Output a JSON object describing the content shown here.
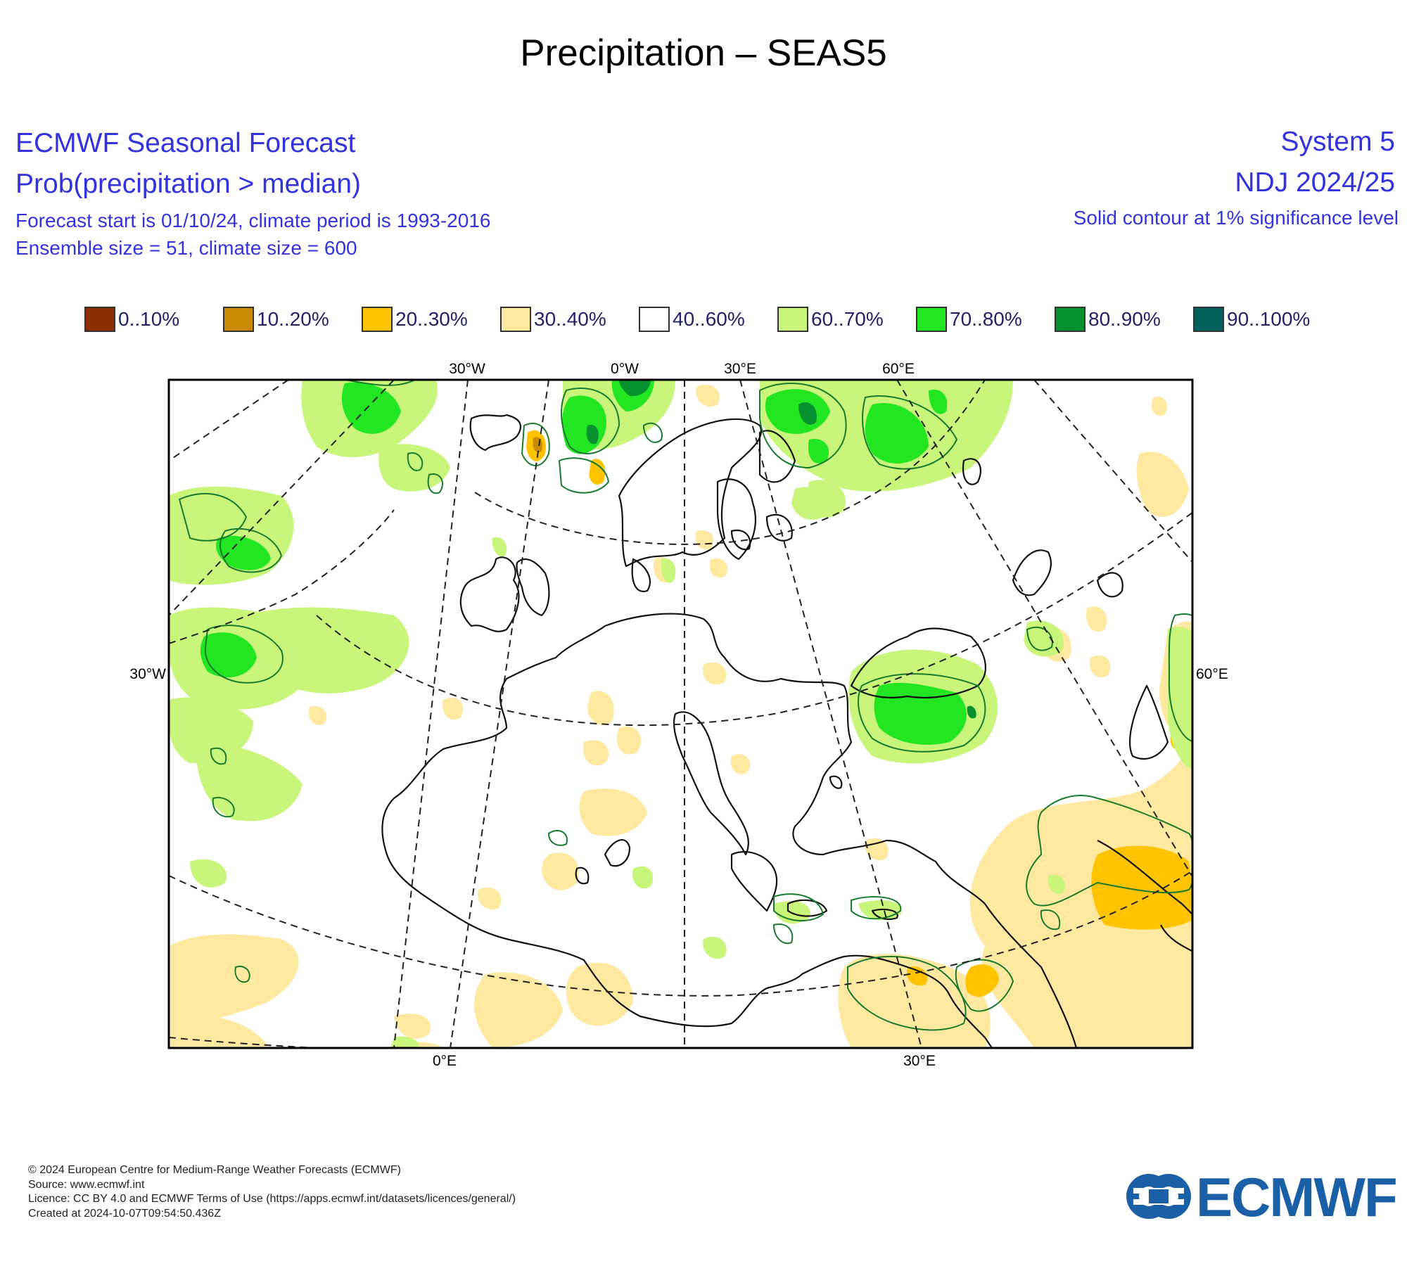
{
  "title": "Precipitation – SEAS5",
  "header": {
    "left": {
      "line1": "ECMWF Seasonal Forecast",
      "line2": "Prob(precipitation > median)",
      "line3": "Forecast start is 01/10/24, climate period is 1993-2016",
      "line4": "Ensemble size = 51, climate size = 600"
    },
    "right": {
      "line1": "System 5",
      "line2": "NDJ 2024/25",
      "line3": "Solid contour at 1% significance level"
    }
  },
  "legend": [
    {
      "label": "0..10%",
      "color": "#8b2e00"
    },
    {
      "label": "10..20%",
      "color": "#c98a00"
    },
    {
      "label": "20..30%",
      "color": "#ffc300"
    },
    {
      "label": "30..40%",
      "color": "#ffe8a0"
    },
    {
      "label": "40..60%",
      "color": "#ffffff"
    },
    {
      "label": "60..70%",
      "color": "#c8f57a"
    },
    {
      "label": "70..80%",
      "color": "#22e622"
    },
    {
      "label": "80..90%",
      "color": "#06902e"
    },
    {
      "label": "90..100%",
      "color": "#03625c"
    }
  ],
  "map": {
    "graticule_labels": {
      "top": [
        "30°W",
        "0°W",
        "30°E",
        "60°E"
      ],
      "left": [
        "30°W"
      ],
      "right": [
        "60°E"
      ],
      "bottom": [
        "0°E",
        "30°E"
      ]
    },
    "colors": {
      "coast": "#111111",
      "significance_contour": "#1a7a2e",
      "frame": "#000000"
    }
  },
  "footer": {
    "line1": "© 2024 European Centre for Medium-Range Weather Forecasts (ECMWF)",
    "line2": "Source: www.ecmwf.int",
    "line3": "Licence: CC BY 4.0 and ECMWF Terms of Use (https://apps.ecmwf.int/datasets/licences/general/)",
    "line4": "Created at 2024-10-07T09:54:50.436Z"
  },
  "logo": {
    "text": "ECMWF",
    "color": "#1b5fa6",
    "icon": "ecmwf-logo-icon"
  }
}
